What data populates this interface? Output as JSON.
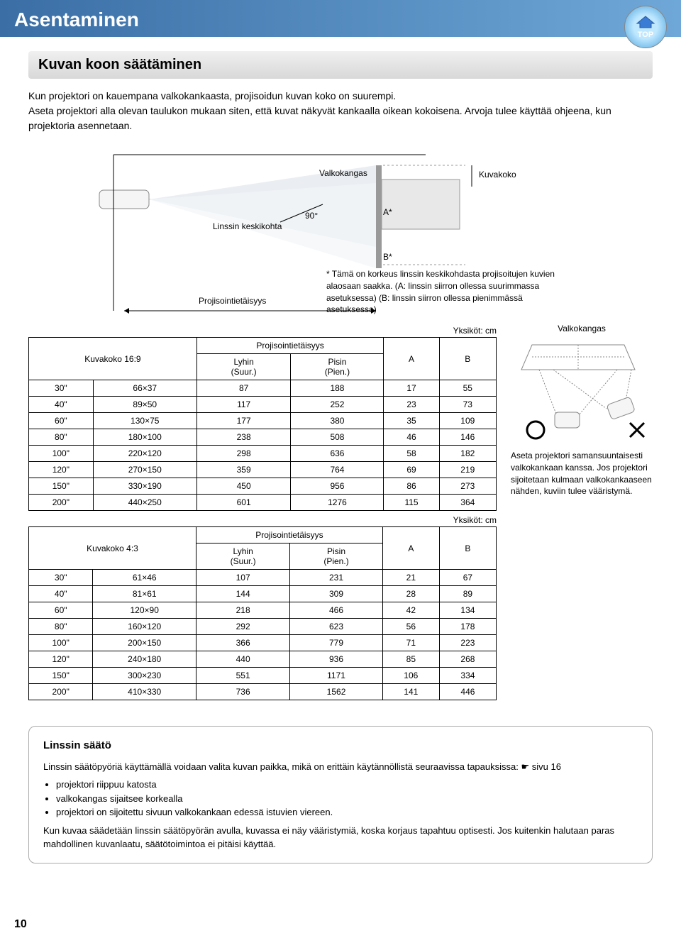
{
  "header": {
    "title": "Asentaminen",
    "top_badge": "TOP"
  },
  "section": {
    "title": "Kuvan koon säätäminen",
    "intro": "Kun projektori on kauempana valkokankaasta, projisoidun kuvan koko on suurempi.\nAseta projektori alla olevan taulukon mukaan siten, että kuvat näkyvät kankaalla oikean kokoisena. Arvoja tulee käyttää ohjeena, kun projektoria asennetaan."
  },
  "diagram": {
    "valkokangas": "Valkokangas",
    "kuvakoko": "Kuvakoko",
    "angle": "90°",
    "a_label": "A*",
    "b_label": "B*",
    "lens_center": "Linssin keskikohta",
    "proj_dist": "Projisointietäisyys",
    "footnote": "* Tämä on korkeus linssin keskikohdasta projisoitujen kuvien alaosaan saakka.\n(A: linssin siirron ollessa suurimmassa asetuksessa)\n(B: linssin siirron ollessa pienimmässä asetuksessa)"
  },
  "units_label": "Yksiköt: cm",
  "table16_9": {
    "title": "Kuvakoko 16:9",
    "col_proj": "Projisointietäisyys",
    "col_short": "Lyhin\n(Suur.)",
    "col_long": "Pisin\n(Pien.)",
    "col_a": "A",
    "col_b": "B",
    "rows": [
      [
        "30\"",
        "66×37",
        "87",
        "188",
        "17",
        "55"
      ],
      [
        "40\"",
        "89×50",
        "117",
        "252",
        "23",
        "73"
      ],
      [
        "60\"",
        "130×75",
        "177",
        "380",
        "35",
        "109"
      ],
      [
        "80\"",
        "180×100",
        "238",
        "508",
        "46",
        "146"
      ],
      [
        "100\"",
        "220×120",
        "298",
        "636",
        "58",
        "182"
      ],
      [
        "120\"",
        "270×150",
        "359",
        "764",
        "69",
        "219"
      ],
      [
        "150\"",
        "330×190",
        "450",
        "956",
        "86",
        "273"
      ],
      [
        "200\"",
        "440×250",
        "601",
        "1276",
        "115",
        "364"
      ]
    ]
  },
  "table4_3": {
    "title": "Kuvakoko 4:3",
    "col_proj": "Projisointietäisyys",
    "col_short": "Lyhin\n(Suur.)",
    "col_long": "Pisin\n(Pien.)",
    "col_a": "A",
    "col_b": "B",
    "rows": [
      [
        "30\"",
        "61×46",
        "107",
        "231",
        "21",
        "67"
      ],
      [
        "40\"",
        "81×61",
        "144",
        "309",
        "28",
        "89"
      ],
      [
        "60\"",
        "120×90",
        "218",
        "466",
        "42",
        "134"
      ],
      [
        "80\"",
        "160×120",
        "292",
        "623",
        "56",
        "178"
      ],
      [
        "100\"",
        "200×150",
        "366",
        "779",
        "71",
        "223"
      ],
      [
        "120\"",
        "240×180",
        "440",
        "936",
        "85",
        "268"
      ],
      [
        "150\"",
        "300×230",
        "551",
        "1171",
        "106",
        "334"
      ],
      [
        "200\"",
        "410×330",
        "736",
        "1562",
        "141",
        "446"
      ]
    ]
  },
  "side": {
    "valkokangas": "Valkokangas",
    "caption": "Aseta projektori samansuuntaisesti valkokankaan kanssa. Jos projektori sijoitetaan kulmaan valkokankaaseen nähden, kuviin tulee vääristymä."
  },
  "callout": {
    "title": "Linssin säätö",
    "p1_a": "Linssin säätöpyöriä käyttämällä voidaan valita kuvan paikka, mikä on erittäin käytännöllistä seuraavissa tapauksissa: ",
    "p1_link": "sivu 16",
    "bullets": [
      "projektori riippuu katosta",
      "valkokangas sijaitsee korkealla",
      "projektori on sijoitettu sivuun valkokankaan edessä istuvien viereen."
    ],
    "p2": "Kun kuvaa säädetään linssin säätöpyörän avulla, kuvassa ei näy vääristymiä, koska korjaus tapahtuu optisesti. Jos kuitenkin halutaan paras mahdollinen kuvanlaatu, säätötoimintoa ei pitäisi käyttää."
  },
  "page_number": "10"
}
